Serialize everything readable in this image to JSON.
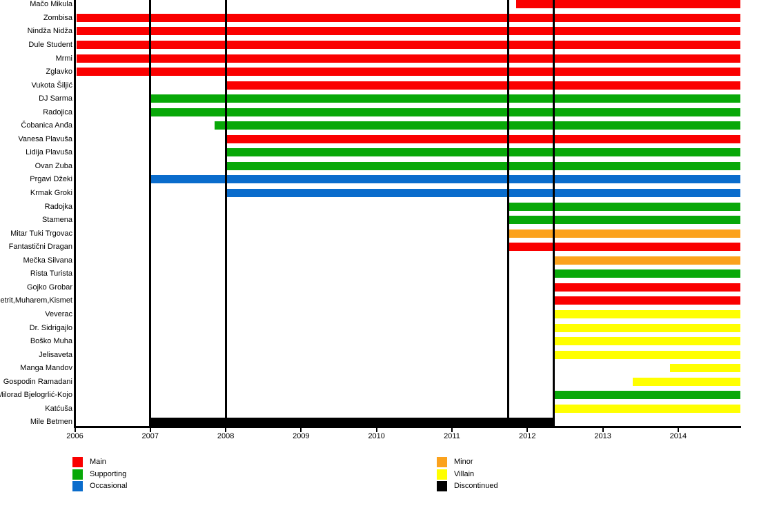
{
  "page": {
    "background_color": "#FFFFFF"
  },
  "chart_data": {
    "type": "bar",
    "subtype": "gantt-character-timeline",
    "title": "",
    "xlabel": "",
    "ylabel": "",
    "grid": "vertical-black-lines",
    "legend_position": "bottom",
    "x_axis": {
      "min": 2006,
      "max": 2014.82,
      "ticks": [
        2006,
        2007,
        2008,
        2009,
        2010,
        2011,
        2012,
        2013,
        2014
      ]
    },
    "gridline_years": [
      2007,
      2008,
      2011.75,
      2012.35
    ],
    "role_colors": {
      "main": "#FA0000",
      "supporting": "#08A808",
      "occasional": "#0A6CCC",
      "minor": "#FBA21D",
      "villain": "#FFFF00",
      "discontinued": "#000000"
    },
    "rows": [
      {
        "name": "Mačo Mikula",
        "role": "main",
        "start": 2011.85,
        "end": 2014.82
      },
      {
        "name": "Zombisa",
        "role": "main",
        "start": 2006.02,
        "end": 2014.82
      },
      {
        "name": "Nindža Nidža",
        "role": "main",
        "start": 2006.02,
        "end": 2014.82
      },
      {
        "name": "Dule Student",
        "role": "main",
        "start": 2006.02,
        "end": 2014.82
      },
      {
        "name": "Mrmi",
        "role": "main",
        "start": 2006.02,
        "end": 2014.82
      },
      {
        "name": "Zglavko",
        "role": "main",
        "start": 2006.02,
        "end": 2014.82
      },
      {
        "name": "Vukota Šiljić",
        "role": "main",
        "start": 2008.0,
        "end": 2014.82
      },
      {
        "name": "DJ Sarma",
        "role": "supporting",
        "start": 2007.0,
        "end": 2014.82
      },
      {
        "name": "Radojica",
        "role": "supporting",
        "start": 2007.0,
        "end": 2014.82
      },
      {
        "name": "Čobanica Anđa",
        "role": "supporting",
        "start": 2007.85,
        "end": 2014.82
      },
      {
        "name": "Vanesa Plavuša",
        "role": "main",
        "start": 2008.0,
        "end": 2014.82
      },
      {
        "name": "Lidija Plavuša",
        "role": "supporting",
        "start": 2008.0,
        "end": 2014.82
      },
      {
        "name": "Ovan Zuba",
        "role": "supporting",
        "start": 2008.0,
        "end": 2014.82
      },
      {
        "name": "Prgavi Džeki",
        "role": "occasional",
        "start": 2007.0,
        "end": 2014.82
      },
      {
        "name": "Krmak Groki",
        "role": "occasional",
        "start": 2008.0,
        "end": 2014.82
      },
      {
        "name": "Radojka",
        "role": "supporting",
        "start": 2011.75,
        "end": 2014.82
      },
      {
        "name": "Stamena",
        "role": "supporting",
        "start": 2011.75,
        "end": 2014.82
      },
      {
        "name": "Mitar Tuki Trgovac",
        "role": "minor",
        "start": 2011.75,
        "end": 2014.82
      },
      {
        "name": "Fantastični Dragan",
        "role": "main",
        "start": 2011.75,
        "end": 2014.82
      },
      {
        "name": "Mečka Silvana",
        "role": "minor",
        "start": 2012.35,
        "end": 2014.82
      },
      {
        "name": "Rista Turista",
        "role": "supporting",
        "start": 2012.35,
        "end": 2014.82
      },
      {
        "name": "Gojko Grobar",
        "role": "main",
        "start": 2012.35,
        "end": 2014.82
      },
      {
        "name": "Petrit,Muharem,Kismet",
        "role": "main",
        "start": 2012.35,
        "end": 2014.82
      },
      {
        "name": "Veverac",
        "role": "villain",
        "start": 2012.35,
        "end": 2014.82
      },
      {
        "name": "Dr. Sidrigajlo",
        "role": "villain",
        "start": 2012.35,
        "end": 2014.82
      },
      {
        "name": "Boško Muha",
        "role": "villain",
        "start": 2012.35,
        "end": 2014.82
      },
      {
        "name": "Jelisaveta",
        "role": "villain",
        "start": 2012.35,
        "end": 2014.82
      },
      {
        "name": "Manga Mandov",
        "role": "villain",
        "start": 2013.89,
        "end": 2014.82
      },
      {
        "name": "Gospodin Ramadani",
        "role": "villain",
        "start": 2013.4,
        "end": 2014.82
      },
      {
        "name": "Milorad Bjelogrlić-Kojo",
        "role": "supporting",
        "start": 2012.35,
        "end": 2014.82
      },
      {
        "name": "Katćuša",
        "role": "villain",
        "start": 2012.35,
        "end": 2014.82
      },
      {
        "name": "Mile Betmen",
        "role": "discontinued",
        "start": 2007.0,
        "end": 2012.35
      }
    ],
    "legend": {
      "columns": [
        [
          {
            "label": "Main",
            "role": "main"
          },
          {
            "label": "Supporting",
            "role": "supporting"
          },
          {
            "label": "Occasional",
            "role": "occasional"
          }
        ],
        [
          {
            "label": "Minor",
            "role": "minor"
          },
          {
            "label": "Villain",
            "role": "villain"
          },
          {
            "label": "Discontinued",
            "role": "discontinued"
          }
        ]
      ]
    }
  }
}
